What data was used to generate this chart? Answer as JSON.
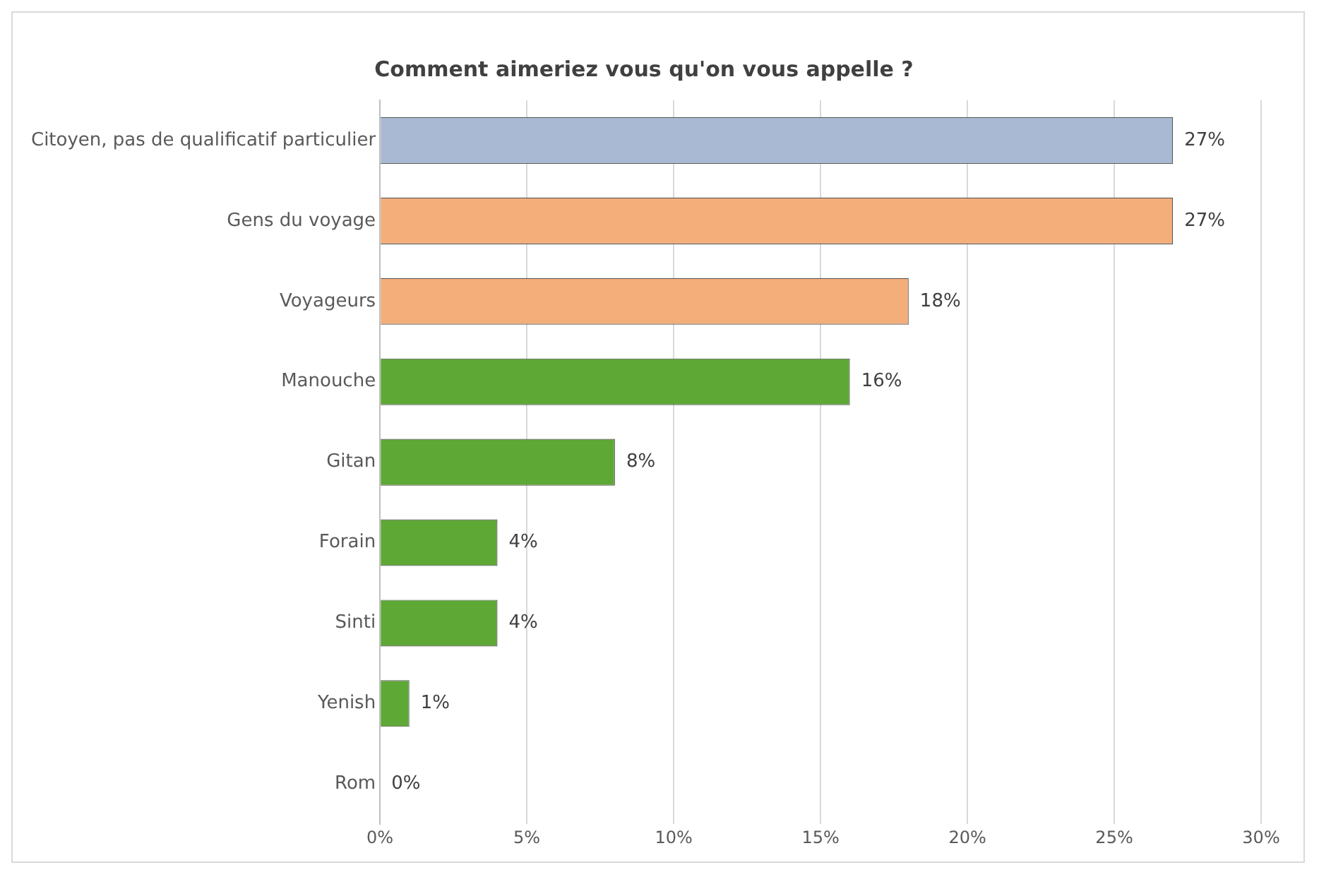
{
  "chart_data": {
    "type": "bar",
    "orientation": "horizontal",
    "title": "Comment aimeriez vous qu'on vous appelle ?",
    "categories": [
      "Citoyen, pas de qualificatif particulier",
      "Gens du voyage",
      "Voyageurs",
      "Manouche",
      "Gitan",
      "Forain",
      "Sinti",
      "Yenish",
      "Rom"
    ],
    "values": [
      27,
      27,
      18,
      16,
      8,
      4,
      4,
      1,
      0
    ],
    "value_labels": [
      "27%",
      "27%",
      "18%",
      "16%",
      "8%",
      "4%",
      "4%",
      "1%",
      "0%"
    ],
    "colors": [
      "#a9b9d3",
      "#f4ae7a",
      "#f4ae7a",
      "#5ea836",
      "#5ea836",
      "#5ea836",
      "#5ea836",
      "#5ea836",
      "#5ea836"
    ],
    "xlim": [
      0,
      30
    ],
    "xticks": [
      {
        "value": 0,
        "label": "0%"
      },
      {
        "value": 5,
        "label": "5%"
      },
      {
        "value": 10,
        "label": "10%"
      },
      {
        "value": 15,
        "label": "15%"
      },
      {
        "value": 20,
        "label": "20%"
      },
      {
        "value": 25,
        "label": "25%"
      },
      {
        "value": 30,
        "label": "30%"
      }
    ],
    "grid": "x",
    "legend": false
  }
}
